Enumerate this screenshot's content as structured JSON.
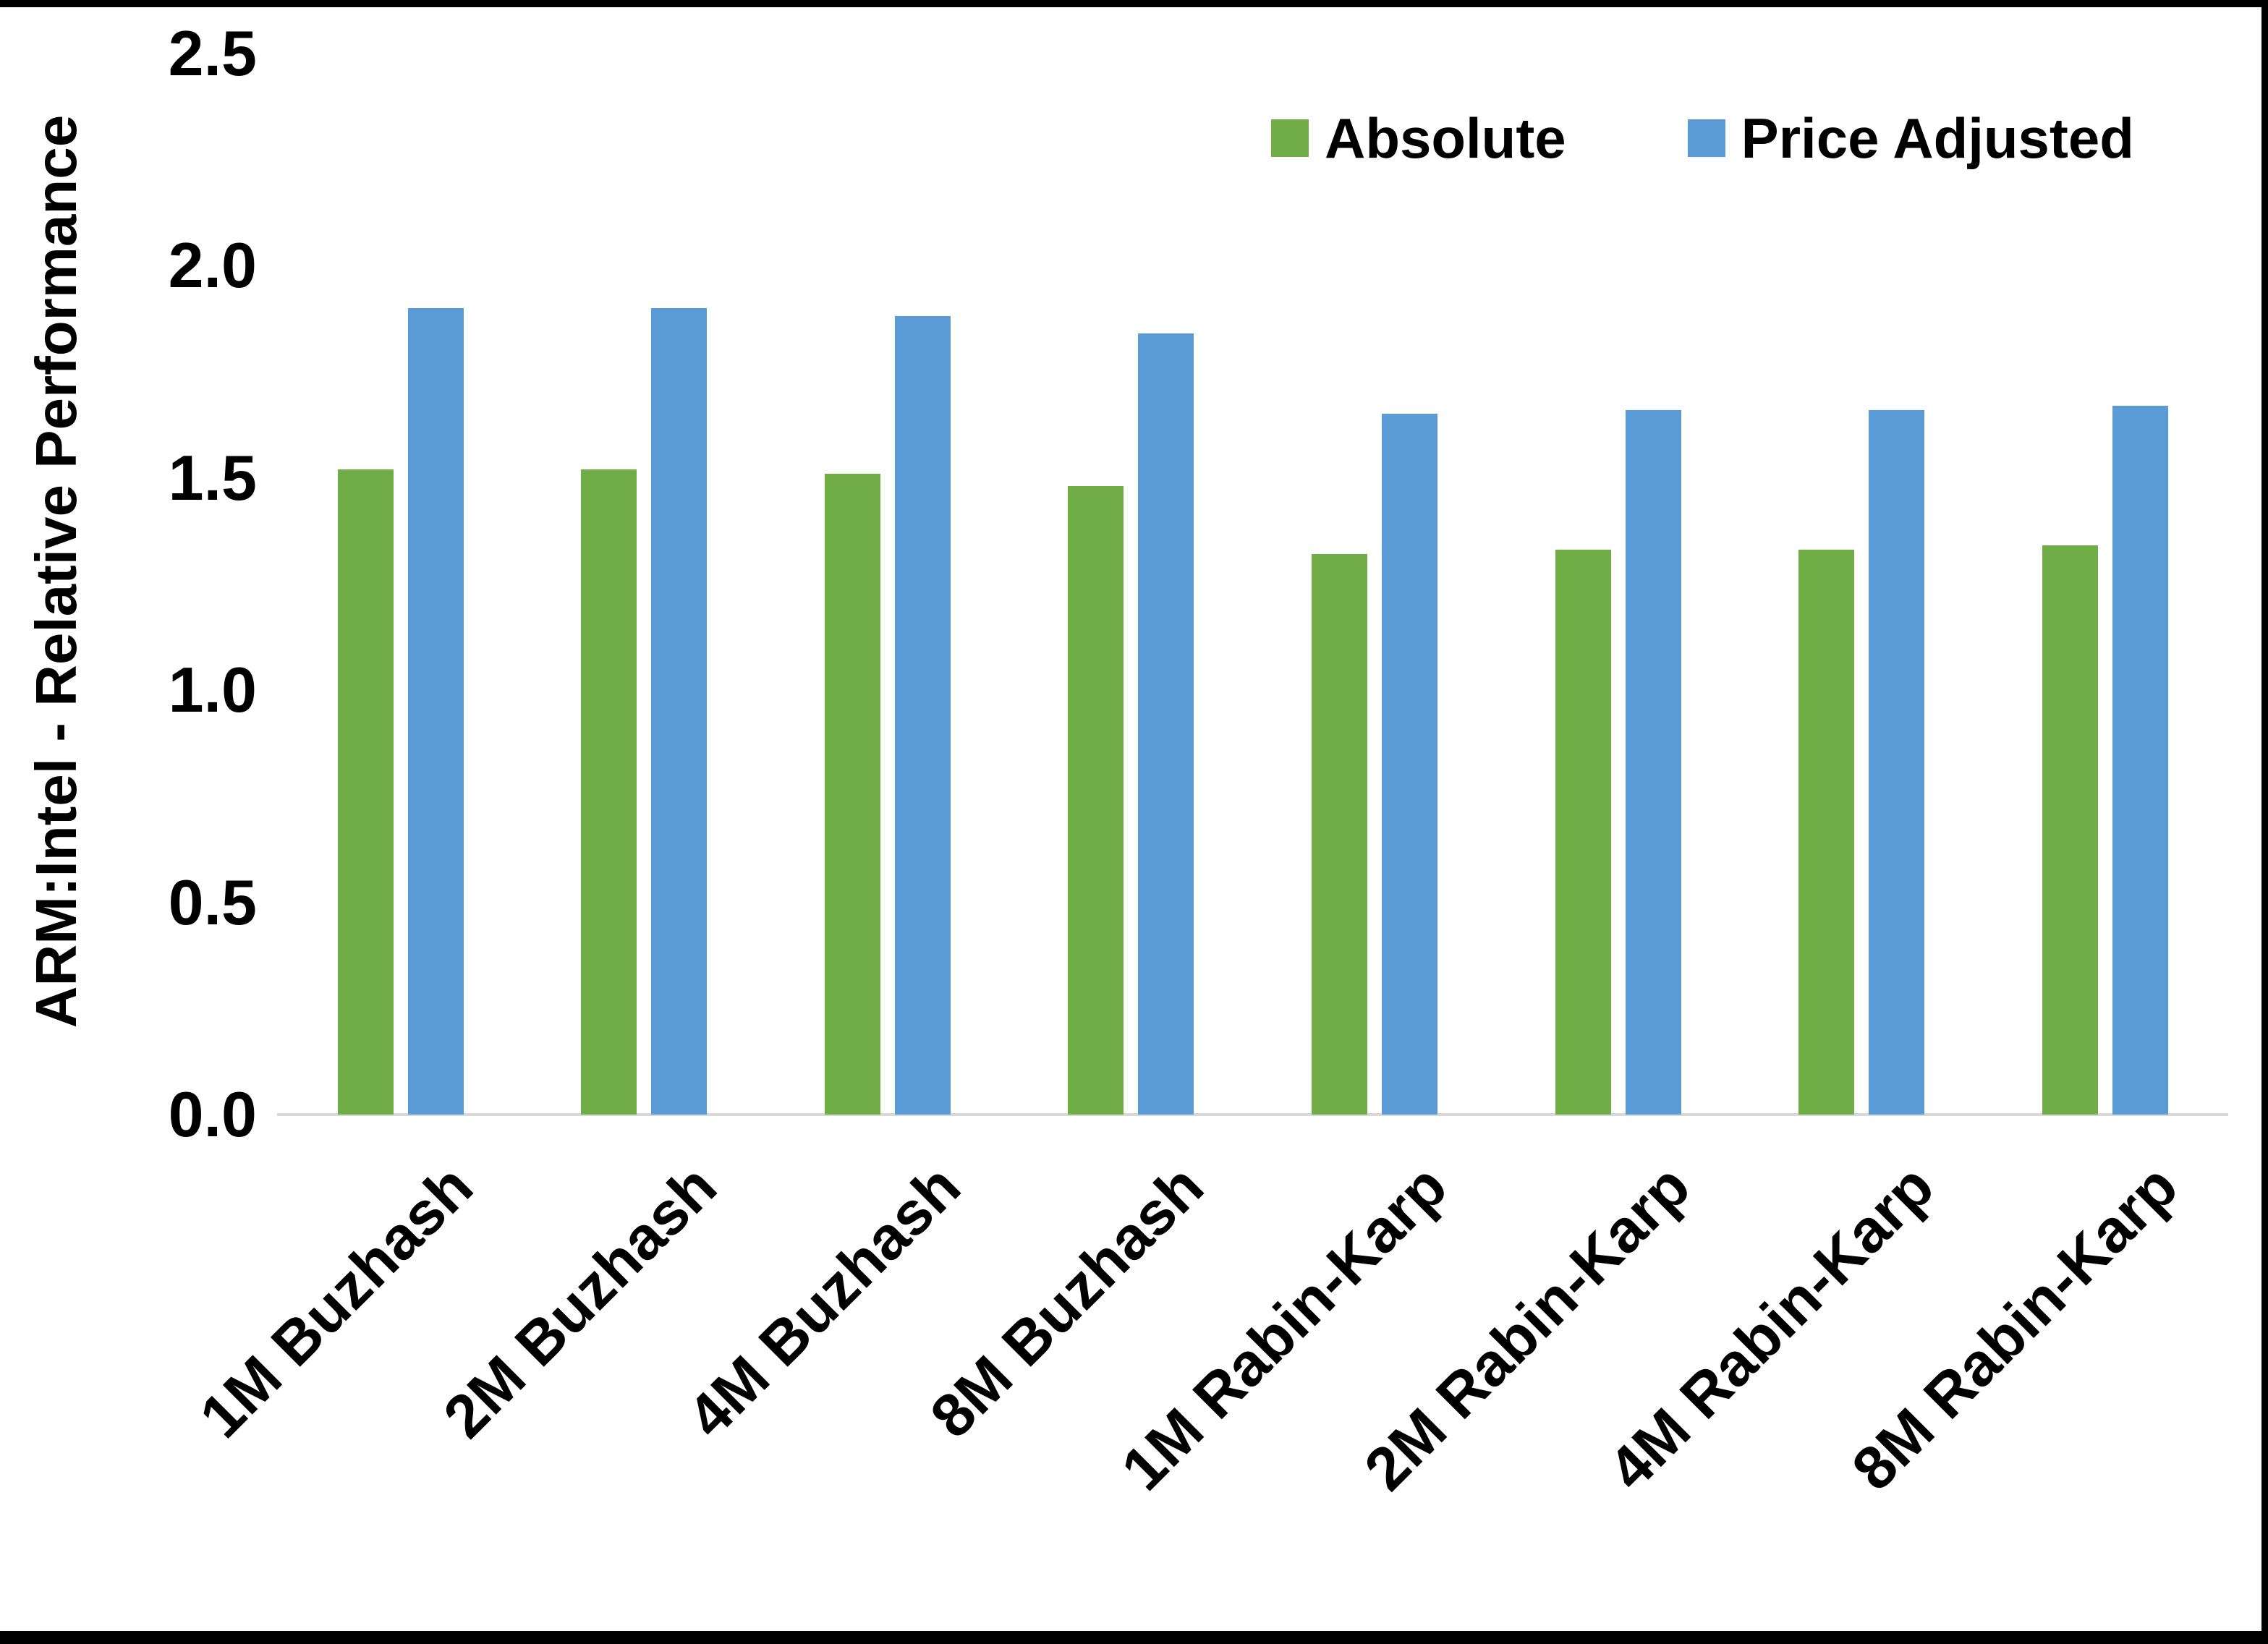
{
  "frame": {
    "border_color": "#000000"
  },
  "axis": {
    "y_title": "ARM:Intel - Relative Performance",
    "y_tick_labels": [
      "0.0",
      "0.5",
      "1.0",
      "1.5",
      "2.0",
      "2.5"
    ],
    "y_tick_values": [
      0,
      0.5,
      1.0,
      1.5,
      2.0,
      2.5
    ],
    "baseline_color": "#d9d9d9"
  },
  "chart_data": {
    "type": "bar",
    "categories": [
      "1M Buzhash",
      "2M Buzhash",
      "4M Buzhash",
      "8M Buzhash",
      "1M Rabin-Karp",
      "2M Rabin-Karp",
      "4M Rabin-Karp",
      "8M Rabin-Karp"
    ],
    "series": [
      {
        "name": "Absolute",
        "color": "#70AD47",
        "values": [
          1.52,
          1.52,
          1.51,
          1.48,
          1.32,
          1.33,
          1.33,
          1.34
        ]
      },
      {
        "name": "Price Adjusted",
        "color": "#5B9BD5",
        "values": [
          1.9,
          1.9,
          1.88,
          1.84,
          1.65,
          1.66,
          1.66,
          1.67
        ]
      }
    ],
    "title": "",
    "xlabel": "",
    "ylabel": "ARM:Intel - Relative Performance",
    "ylim": [
      0,
      2.5
    ],
    "grid": false,
    "legend_position": "top-right"
  }
}
